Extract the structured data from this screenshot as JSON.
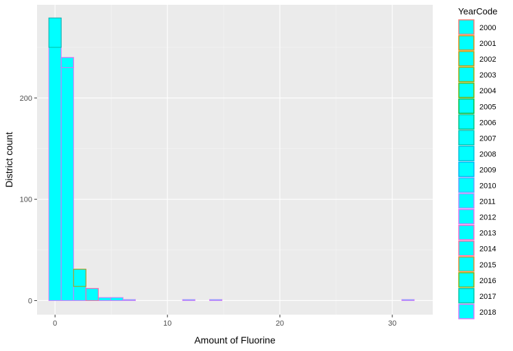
{
  "chart_data": {
    "type": "bar",
    "subtype": "stacked-histogram",
    "xlabel": "Amount of Fluorine",
    "ylabel": "District count",
    "xlim": [
      -1.6,
      33.6
    ],
    "ylim": [
      -13.9,
      292
    ],
    "x_ticks": [
      0,
      10,
      20,
      30
    ],
    "y_ticks": [
      0,
      100,
      200
    ],
    "bin_width": 1.1,
    "bin_centers": [
      0,
      1.1,
      2.2,
      3.3,
      4.4,
      5.5,
      6.6,
      11.9,
      14.3,
      31.4
    ],
    "bin_totals": [
      279,
      240,
      31,
      12,
      3,
      3,
      1,
      1,
      1,
      1
    ],
    "fill_color": "#00FFFF",
    "grid": true,
    "panel_background": "#EBEBEB",
    "legend": {
      "title": "YearCode",
      "position": "right",
      "entries": [
        "2000",
        "2001",
        "2002",
        "2003",
        "2004",
        "2005",
        "2006",
        "2007",
        "2008",
        "2009",
        "2010",
        "2011",
        "2012",
        "2013",
        "2014",
        "2015",
        "2016",
        "2017",
        "2018"
      ],
      "colors": [
        "#F8766D",
        "#E58700",
        "#C99800",
        "#A3A500",
        "#6BB100",
        "#00BA38",
        "#00BF7D",
        "#00C0AF",
        "#00BCD8",
        "#00B0F6",
        "#619CFF",
        "#B983FF",
        "#E76BF3",
        "#FD61D1",
        "#FF67A4",
        "#E88526",
        "#93AA00",
        "#00C1A3",
        "#DB72FB"
      ]
    },
    "segment_highlights": [
      {
        "bin": 0,
        "y_start": 250,
        "y_end": 279
      },
      {
        "bin": 1,
        "y_start": 230,
        "y_end": 240
      },
      {
        "bin": 2,
        "y_start": 14,
        "y_end": 31
      },
      {
        "bin": 3,
        "y_start": 0,
        "y_end": 12
      }
    ]
  }
}
